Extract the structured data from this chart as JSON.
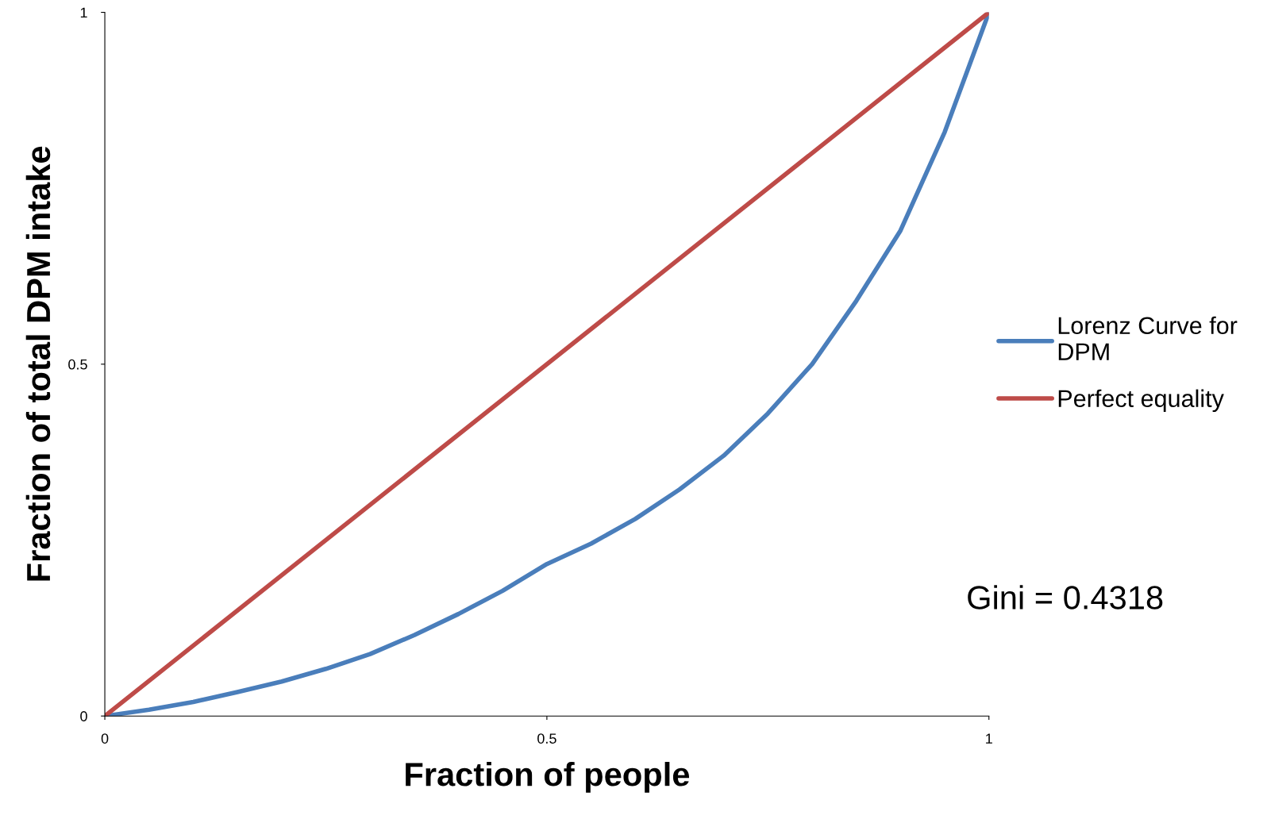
{
  "chart_data": {
    "type": "line",
    "xlabel": "Fraction of people",
    "ylabel": "Fraction of total DPM intake",
    "series": [
      {
        "name": "Lorenz Curve for\nDPM",
        "color": "#4a7ebb",
        "x": [
          0,
          0.05,
          0.1,
          0.15,
          0.2,
          0.25,
          0.3,
          0.35,
          0.4,
          0.45,
          0.5,
          0.55,
          0.6,
          0.65,
          0.7,
          0.75,
          0.8,
          0.85,
          0.9,
          0.95,
          1
        ],
        "values": [
          0,
          0.009,
          0.02,
          0.034,
          0.049,
          0.067,
          0.088,
          0.115,
          0.145,
          0.178,
          0.216,
          0.245,
          0.28,
          0.322,
          0.37,
          0.43,
          0.5,
          0.59,
          0.69,
          0.83,
          1
        ]
      },
      {
        "name": "Perfect equality",
        "color": "#be4b48",
        "x": [
          0,
          1
        ],
        "values": [
          0,
          1
        ]
      }
    ],
    "xlim": [
      0,
      1
    ],
    "ylim": [
      0,
      1
    ],
    "xticks": [
      0,
      0.5,
      1
    ],
    "yticks": [
      0,
      0.5,
      1
    ],
    "grid": false,
    "legend": "right",
    "marker": "none",
    "line_style": "solid",
    "annotations": [
      {
        "text": "Gini = 0.4318"
      }
    ]
  }
}
